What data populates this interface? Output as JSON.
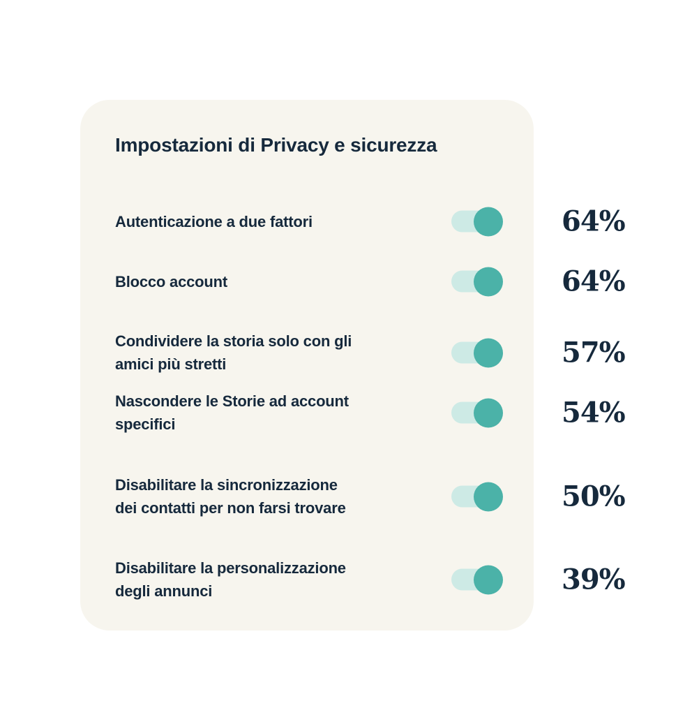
{
  "theme": {
    "page_bg": "#ffffff",
    "card_bg": "#f7f5ee",
    "text_navy": "#16293c",
    "toggle_track": "#cdeae5",
    "toggle_knob": "#4bb2a8"
  },
  "card": {
    "title": "Impostazioni di Privacy e sicurezza",
    "settings": [
      {
        "label": "Autenticazione a due fattori",
        "value": "64%",
        "state": "on"
      },
      {
        "label": "Blocco account",
        "value": "64%",
        "state": "on"
      },
      {
        "label": "Condividere la storia solo con gli\namici più stretti",
        "value": "57%",
        "state": "on"
      },
      {
        "label": "Nascondere le Storie ad account\nspecifici",
        "value": "54%",
        "state": "on"
      },
      {
        "label": "Disabilitare la sincronizzazione\ndei contatti per non farsi trovare",
        "value": "50%",
        "state": "on"
      },
      {
        "label": "Disabilitare la personalizzazione\ndegli annunci",
        "value": "39%",
        "state": "on"
      }
    ]
  },
  "chart_data": {
    "type": "table",
    "title": "Impostazioni di Privacy e sicurezza",
    "categories": [
      "Autenticazione a due fattori",
      "Blocco account",
      "Condividere la storia solo con gli amici più stretti",
      "Nascondere le Storie ad account specifici",
      "Disabilitare la sincronizzazione dei contatti per non farsi trovare",
      "Disabilitare la personalizzazione degli annunci"
    ],
    "values": [
      64,
      64,
      57,
      54,
      50,
      39
    ],
    "unit": "%",
    "value_labels": [
      "64%",
      "64%",
      "57%",
      "54%",
      "50%",
      "39%"
    ],
    "legend_position": "none",
    "notes": "each category shown with an enabled toggle switch"
  }
}
